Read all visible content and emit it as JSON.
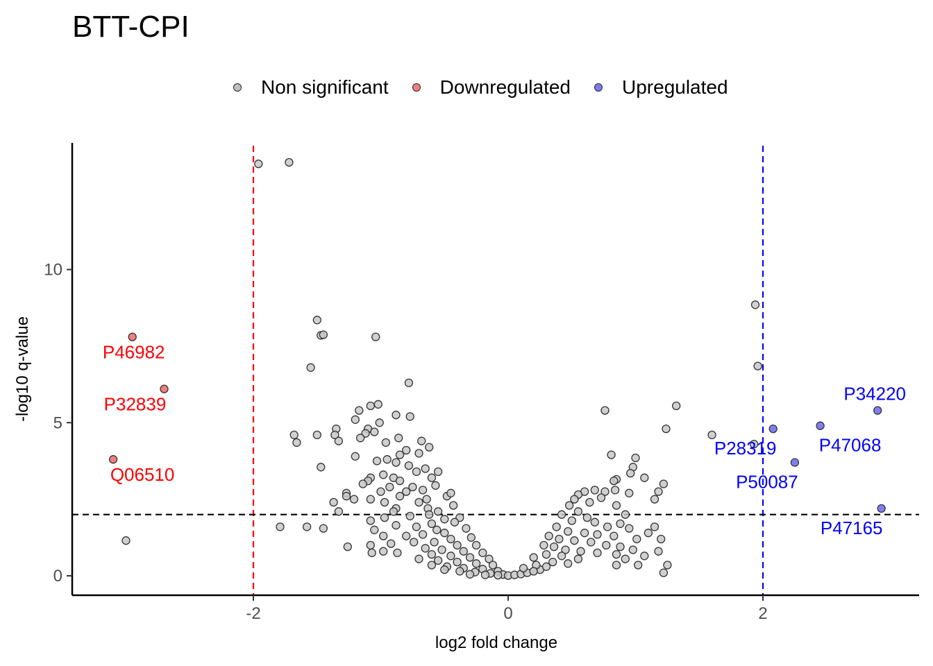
{
  "chart_data": {
    "type": "scatter",
    "title": "BTT-CPI",
    "xlabel": "log2 fold change",
    "ylabel": "-log10 q-value",
    "xlim": [
      -3.4,
      3.2
    ],
    "ylim": [
      -0.7,
      14.1
    ],
    "xticks": [
      -2,
      0,
      2
    ],
    "yticks": [
      0,
      5,
      10
    ],
    "xtick_labels": [
      "-2",
      "0",
      "2"
    ],
    "ytick_labels": [
      "0",
      "5",
      "10"
    ],
    "thresholds": {
      "fc_low": -2,
      "fc_high": 2,
      "q": 2
    },
    "legend": {
      "placement": "top",
      "entries": [
        {
          "label": "Non significant",
          "color": "#bdbdbd"
        },
        {
          "label": "Downregulated",
          "color": "#f08080"
        },
        {
          "label": "Upregulated",
          "color": "#7b7bf0"
        }
      ]
    },
    "colors": {
      "nonsig": "#c8c8c8",
      "down": "#f07f7f",
      "up": "#7f7ff2",
      "down_text": "#ff0000",
      "up_text": "#0000ff"
    },
    "series": [
      {
        "name": "Downregulated",
        "points": [
          {
            "x": -2.95,
            "y": 7.8,
            "label": "P46982"
          },
          {
            "x": -2.7,
            "y": 6.1,
            "label": "P32839"
          },
          {
            "x": -3.1,
            "y": 3.8,
            "label": "Q06510"
          }
        ]
      },
      {
        "name": "Upregulated",
        "points": [
          {
            "x": 2.9,
            "y": 5.4,
            "label": "P34220"
          },
          {
            "x": 2.08,
            "y": 4.8,
            "label": "P28319"
          },
          {
            "x": 2.45,
            "y": 4.9,
            "label": "P47068"
          },
          {
            "x": 2.25,
            "y": 3.7,
            "label": "P50087"
          },
          {
            "x": 2.93,
            "y": 2.2,
            "label": "P47165"
          }
        ]
      },
      {
        "name": "Non significant",
        "points": [
          [
            -1.96,
            13.45
          ],
          [
            -1.72,
            13.5
          ],
          [
            -1.5,
            8.35
          ],
          [
            -1.47,
            7.85
          ],
          [
            -1.45,
            7.87
          ],
          [
            -1.04,
            7.8
          ],
          [
            -0.78,
            6.3
          ],
          [
            -1.55,
            6.8
          ],
          [
            -1.02,
            5.6
          ],
          [
            -1.08,
            5.55
          ],
          [
            -1.17,
            5.4
          ],
          [
            -0.88,
            5.25
          ],
          [
            -0.77,
            5.2
          ],
          [
            -1.2,
            5.1
          ],
          [
            -1.01,
            5.0
          ],
          [
            -1.1,
            4.8
          ],
          [
            -1.35,
            4.8
          ],
          [
            -1.36,
            4.6
          ],
          [
            -1.05,
            4.7
          ],
          [
            -1.12,
            4.65
          ],
          [
            -0.86,
            4.5
          ],
          [
            -1.16,
            4.5
          ],
          [
            -0.68,
            4.4
          ],
          [
            -1.33,
            4.4
          ],
          [
            -1.68,
            4.6
          ],
          [
            -1.66,
            4.35
          ],
          [
            -1.5,
            4.6
          ],
          [
            -0.96,
            4.35
          ],
          [
            -0.8,
            4.1
          ],
          [
            -0.7,
            4.0
          ],
          [
            -0.85,
            3.95
          ],
          [
            -0.62,
            4.2
          ],
          [
            -1.2,
            3.9
          ],
          [
            -0.95,
            3.8
          ],
          [
            -1.03,
            3.75
          ],
          [
            -0.88,
            3.7
          ],
          [
            -0.78,
            3.6
          ],
          [
            -0.65,
            3.5
          ],
          [
            -1.47,
            3.55
          ],
          [
            -0.55,
            3.4
          ],
          [
            -0.72,
            3.4
          ],
          [
            -0.98,
            3.3
          ],
          [
            -0.9,
            3.2
          ],
          [
            -0.6,
            3.2
          ],
          [
            -1.08,
            3.2
          ],
          [
            -0.85,
            3.1
          ],
          [
            -1.1,
            3.1
          ],
          [
            -1.14,
            3.0
          ],
          [
            -0.93,
            2.9
          ],
          [
            -0.75,
            2.9
          ],
          [
            -0.57,
            2.95
          ],
          [
            -0.67,
            2.8
          ],
          [
            -0.8,
            2.75
          ],
          [
            -1.0,
            2.75
          ],
          [
            -1.27,
            2.7
          ],
          [
            -1.27,
            2.6
          ],
          [
            -0.85,
            2.6
          ],
          [
            -0.48,
            2.6
          ],
          [
            -0.45,
            2.7
          ],
          [
            -1.08,
            2.5
          ],
          [
            -0.64,
            2.5
          ],
          [
            -0.7,
            2.4
          ],
          [
            -0.97,
            2.4
          ],
          [
            -1.37,
            2.4
          ],
          [
            -1.21,
            2.5
          ],
          [
            -0.43,
            2.3
          ],
          [
            -0.63,
            2.2
          ],
          [
            -0.88,
            2.2
          ],
          [
            -0.55,
            2.1
          ],
          [
            -0.9,
            2.1
          ],
          [
            -1.33,
            2.1
          ],
          [
            -0.62,
            2.0
          ],
          [
            -0.77,
            1.95
          ],
          [
            -0.97,
            1.9
          ],
          [
            -1.08,
            1.8
          ],
          [
            -0.5,
            1.85
          ],
          [
            -0.38,
            1.9
          ],
          [
            -0.42,
            1.75
          ],
          [
            -0.6,
            1.7
          ],
          [
            -0.72,
            1.6
          ],
          [
            -0.88,
            1.65
          ],
          [
            -1.05,
            1.5
          ],
          [
            -0.56,
            1.5
          ],
          [
            -0.33,
            1.55
          ],
          [
            -0.5,
            1.4
          ],
          [
            -0.67,
            1.35
          ],
          [
            -0.8,
            1.3
          ],
          [
            -0.98,
            1.3
          ],
          [
            -0.45,
            1.2
          ],
          [
            -0.29,
            1.25
          ],
          [
            -0.58,
            1.1
          ],
          [
            -0.74,
            1.1
          ],
          [
            -0.92,
            1.05
          ],
          [
            -1.08,
            1.0
          ],
          [
            -0.4,
            1.0
          ],
          [
            -0.25,
            1.0
          ],
          [
            -1.79,
            1.6
          ],
          [
            -1.58,
            1.6
          ],
          [
            -1.45,
            1.55
          ],
          [
            -1.26,
            0.95
          ],
          [
            -1.07,
            0.75
          ],
          [
            -0.98,
            0.8
          ],
          [
            -0.87,
            0.75
          ],
          [
            -3.0,
            1.15
          ],
          [
            -0.65,
            0.9
          ],
          [
            -0.52,
            0.85
          ],
          [
            -0.35,
            0.8
          ],
          [
            -0.2,
            0.75
          ],
          [
            -0.6,
            0.7
          ],
          [
            -0.45,
            0.65
          ],
          [
            -0.3,
            0.6
          ],
          [
            -0.15,
            0.55
          ],
          [
            -0.7,
            0.55
          ],
          [
            -0.55,
            0.5
          ],
          [
            -0.4,
            0.45
          ],
          [
            -0.25,
            0.4
          ],
          [
            -0.12,
            0.35
          ],
          [
            -0.6,
            0.35
          ],
          [
            -0.48,
            0.3
          ],
          [
            -0.35,
            0.25
          ],
          [
            -0.2,
            0.22
          ],
          [
            -0.08,
            0.15
          ],
          [
            -0.5,
            0.2
          ],
          [
            -0.38,
            0.15
          ],
          [
            -0.26,
            0.12
          ],
          [
            -0.14,
            0.08
          ],
          [
            -0.04,
            0.04
          ],
          [
            -0.3,
            0.05
          ],
          [
            -0.18,
            0.03
          ],
          [
            -0.08,
            0.02
          ],
          [
            0.0,
            0.01
          ],
          [
            0.05,
            0.03
          ],
          [
            0.1,
            0.06
          ],
          [
            0.15,
            0.1
          ],
          [
            0.2,
            0.15
          ],
          [
            0.25,
            0.2
          ],
          [
            1.94,
            8.85
          ],
          [
            1.96,
            6.85
          ],
          [
            1.32,
            5.55
          ],
          [
            0.76,
            5.4
          ],
          [
            1.24,
            4.8
          ],
          [
            1.6,
            4.6
          ],
          [
            1.93,
            4.3
          ],
          [
            1.0,
            3.85
          ],
          [
            0.81,
            3.95
          ],
          [
            0.98,
            3.55
          ],
          [
            0.96,
            3.35
          ],
          [
            1.07,
            3.2
          ],
          [
            0.85,
            3.15
          ],
          [
            0.83,
            3.1
          ],
          [
            1.22,
            3.0
          ],
          [
            0.68,
            2.8
          ],
          [
            0.76,
            2.75
          ],
          [
            0.84,
            2.8
          ],
          [
            0.95,
            2.7
          ],
          [
            1.18,
            2.75
          ],
          [
            0.6,
            2.75
          ],
          [
            0.55,
            2.65
          ],
          [
            0.73,
            2.55
          ],
          [
            0.52,
            2.5
          ],
          [
            0.64,
            2.4
          ],
          [
            0.85,
            2.3
          ],
          [
            1.15,
            2.5
          ],
          [
            0.92,
            2.0
          ],
          [
            0.48,
            2.3
          ],
          [
            0.55,
            2.1
          ],
          [
            0.62,
            1.9
          ],
          [
            0.5,
            1.8
          ],
          [
            0.42,
            2.0
          ],
          [
            0.68,
            1.75
          ],
          [
            0.78,
            1.6
          ],
          [
            0.88,
            1.7
          ],
          [
            0.95,
            1.55
          ],
          [
            0.38,
            1.6
          ],
          [
            0.47,
            1.45
          ],
          [
            0.6,
            1.4
          ],
          [
            0.7,
            1.35
          ],
          [
            0.83,
            1.3
          ],
          [
            1.01,
            1.2
          ],
          [
            1.1,
            1.4
          ],
          [
            1.2,
            1.2
          ],
          [
            0.32,
            1.3
          ],
          [
            0.4,
            1.2
          ],
          [
            0.52,
            1.15
          ],
          [
            0.65,
            1.1
          ],
          [
            0.77,
            1.0
          ],
          [
            0.88,
            0.95
          ],
          [
            0.98,
            0.85
          ],
          [
            0.28,
            1.0
          ],
          [
            0.36,
            0.95
          ],
          [
            0.45,
            0.85
          ],
          [
            0.57,
            0.8
          ],
          [
            0.7,
            0.75
          ],
          [
            0.85,
            0.7
          ],
          [
            0.3,
            0.7
          ],
          [
            0.42,
            0.65
          ],
          [
            0.55,
            0.55
          ],
          [
            0.2,
            0.6
          ],
          [
            0.35,
            0.45
          ],
          [
            0.47,
            0.4
          ],
          [
            0.22,
            0.35
          ],
          [
            0.3,
            0.3
          ],
          [
            0.12,
            0.25
          ],
          [
            0.2,
            0.15
          ],
          [
            1.07,
            0.65
          ],
          [
            1.22,
            0.1
          ],
          [
            1.25,
            0.35
          ],
          [
            1.18,
            0.8
          ],
          [
            0.92,
            0.55
          ],
          [
            1.02,
            0.35
          ],
          [
            0.85,
            0.35
          ],
          [
            1.15,
            1.6
          ]
        ]
      }
    ]
  }
}
